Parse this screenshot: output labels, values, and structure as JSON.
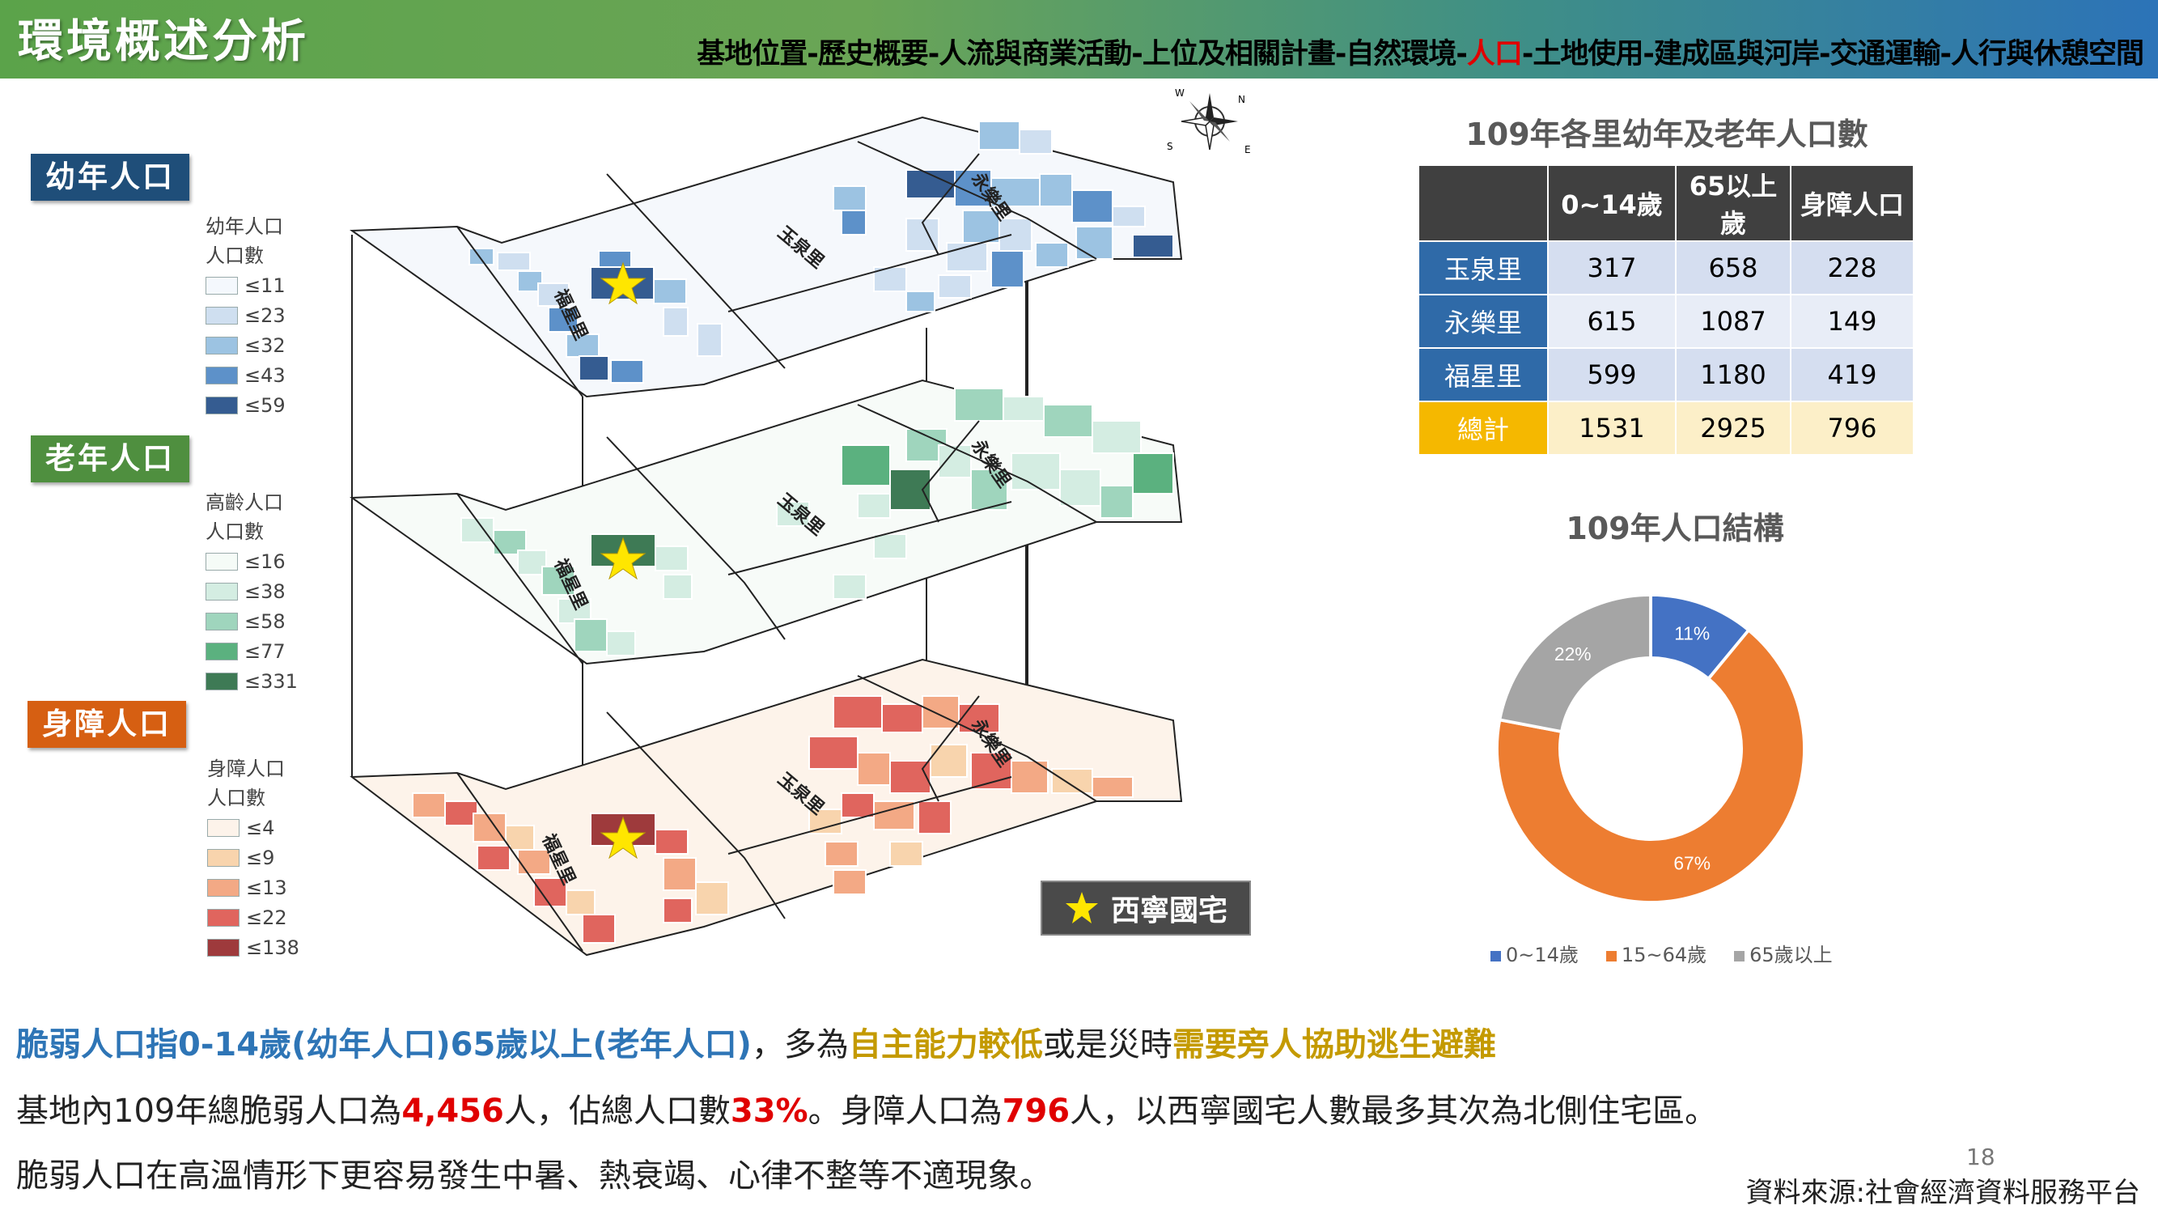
{
  "header": {
    "title": "環境概述分析",
    "nav_before": "基地位置-歷史概要-人流與商業活動-上位及相關計畫-自然環境-",
    "nav_current": "人口",
    "nav_after": "-土地使用-建成區與河岸-交通運輸-人行與休憩空間",
    "bg_colors": [
      "#5ba34a",
      "#2c73b8"
    ]
  },
  "layers": [
    {
      "label": "幼年人口",
      "color": "#1f4e79",
      "legend_title": [
        "幼年人口",
        "人口數"
      ],
      "classes": [
        {
          "label": "≤11",
          "color": "#f4f8fd"
        },
        {
          "label": "≤23",
          "color": "#cfdff0"
        },
        {
          "label": "≤32",
          "color": "#9cc3e2"
        },
        {
          "label": "≤43",
          "color": "#5d91c9"
        },
        {
          "label": "≤59",
          "color": "#355c91"
        }
      ]
    },
    {
      "label": "老年人口",
      "color": "#4f8f3f",
      "legend_title": [
        "高齡人口",
        "人口數"
      ],
      "classes": [
        {
          "label": "≤16",
          "color": "#f5fbf7"
        },
        {
          "label": "≤38",
          "color": "#d4ede2"
        },
        {
          "label": "≤58",
          "color": "#9fd5bd"
        },
        {
          "label": "≤77",
          "color": "#5bb17f"
        },
        {
          "label": "≤331",
          "color": "#3e7a55"
        }
      ]
    },
    {
      "label": "身障人口",
      "color": "#d65f12",
      "legend_title": [
        "身障人口",
        "人口數"
      ],
      "classes": [
        {
          "label": "≤4",
          "color": "#fdf3ea"
        },
        {
          "label": "≤9",
          "color": "#f8d4ad"
        },
        {
          "label": "≤13",
          "color": "#f3a985"
        },
        {
          "label": "≤22",
          "color": "#e0655e"
        },
        {
          "label": "≤138",
          "color": "#9e3a3c"
        }
      ]
    }
  ],
  "map": {
    "villages": [
      "永樂里",
      "玉泉里",
      "福星里"
    ],
    "compass_letters": [
      "W",
      "N",
      "S",
      "E"
    ]
  },
  "marker": {
    "label": "西寧國宅",
    "color": "#ffe600"
  },
  "table": {
    "title": "109年各里幼年及老年人口數",
    "headers": [
      "",
      "0~14歲",
      "65以上歲",
      "身障人口"
    ],
    "rows": [
      {
        "name": "玉泉里",
        "values": [
          "317",
          "658",
          "228"
        ]
      },
      {
        "name": "永樂里",
        "values": [
          "615",
          "1087",
          "149"
        ]
      },
      {
        "name": "福星里",
        "values": [
          "599",
          "1180",
          "419"
        ]
      }
    ],
    "total": {
      "name": "總計",
      "values": [
        "1531",
        "2925",
        "796"
      ]
    },
    "colors": {
      "header": "#404040",
      "rowname": "#2f6aa8",
      "cell": "#d5def0",
      "total_name": "#f5b800",
      "total_cell": "#fcefc8"
    }
  },
  "chart_data": {
    "type": "pie",
    "title": "109年人口結構",
    "categories": [
      "0~14歲",
      "15~64歲",
      "65歲以上"
    ],
    "values": [
      11,
      67,
      22
    ],
    "labels": [
      "11%",
      "67%",
      "22%"
    ],
    "colors": [
      "#4472c4",
      "#ed7d31",
      "#a5a5a5"
    ],
    "legend_position": "bottom"
  },
  "text": {
    "line1": [
      {
        "t": "脆弱人口指0-14歲(幼年人口)65歲以上(老年人口)",
        "c": "#2e75b6",
        "b": true
      },
      {
        "t": "，多為",
        "c": "#222",
        "b": false
      },
      {
        "t": "自主能力較低",
        "c": "#c49a00",
        "b": true
      },
      {
        "t": "或是災時",
        "c": "#222",
        "b": false
      },
      {
        "t": "需要旁人協助逃生避難",
        "c": "#c49a00",
        "b": true
      }
    ],
    "line2": [
      {
        "t": "基地內109年總脆弱人口為",
        "c": "#222",
        "b": false
      },
      {
        "t": "4,456",
        "c": "#e00000",
        "b": true
      },
      {
        "t": "人，佔總人口數",
        "c": "#222",
        "b": false
      },
      {
        "t": "33%",
        "c": "#e00000",
        "b": true
      },
      {
        "t": "。身障人口為",
        "c": "#222",
        "b": false
      },
      {
        "t": "796",
        "c": "#e00000",
        "b": true
      },
      {
        "t": "人，以西寧國宅人數最多其次為北側住宅區。",
        "c": "#222",
        "b": false
      }
    ],
    "line3": [
      {
        "t": "脆弱人口在高溫情形下更容易發生中暑、熱衰竭、心律不整等不適現象。",
        "c": "#222",
        "b": false
      }
    ]
  },
  "page_number": "18",
  "source": "資料來源:社會經濟資料服務平台"
}
